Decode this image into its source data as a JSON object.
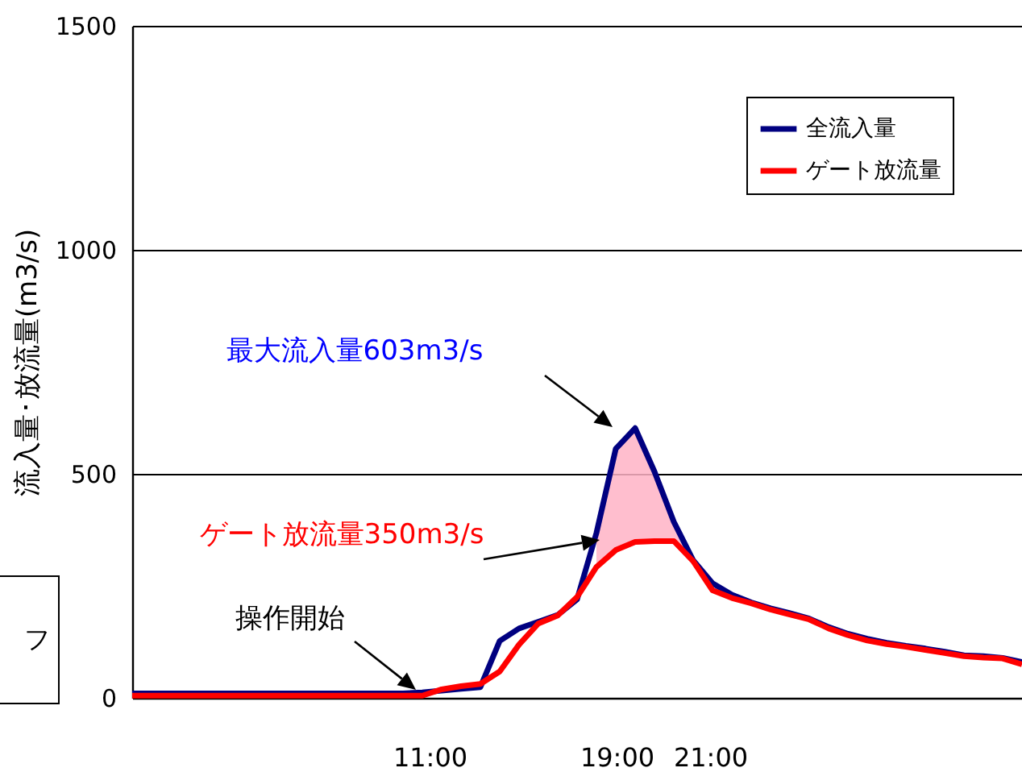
{
  "chart_data": {
    "type": "line",
    "ylabel": "流入量･放流量(m3/s)",
    "categories": [
      null,
      null,
      null,
      null,
      null,
      null,
      null,
      null,
      null,
      null,
      null,
      null,
      null,
      null,
      null,
      null,
      null,
      null,
      null,
      null,
      null,
      null,
      null,
      null,
      null,
      null,
      null,
      null,
      null,
      null,
      null,
      null,
      null,
      null,
      null,
      null,
      null,
      null,
      null,
      null,
      null,
      null,
      null,
      null,
      null,
      null,
      null
    ],
    "ylim": [
      0,
      1500
    ],
    "yticks": [
      0,
      500,
      1000,
      1500
    ],
    "grid": "y",
    "legend": "top right",
    "tick_labels": "y",
    "series": [
      {
        "name": "全流入量",
        "color": "#000080",
        "values": [
          10,
          10,
          10,
          10,
          10,
          10,
          10,
          10,
          10,
          10,
          10,
          10,
          10,
          10,
          10,
          12,
          16,
          20,
          24,
          127,
          155,
          170,
          185,
          220,
          368,
          556,
          602,
          505,
          393,
          307,
          256,
          230,
          213,
          200,
          189,
          177,
          158,
          143,
          132,
          123,
          116,
          110,
          103,
          95,
          93,
          89,
          80
        ]
      },
      {
        "name": "ゲート放流量",
        "color": "#ff0000",
        "values": [
          5,
          5,
          5,
          5,
          5,
          5,
          5,
          5,
          5,
          5,
          5,
          5,
          5,
          5,
          5,
          5,
          19,
          26,
          31,
          59,
          119,
          166,
          184,
          225,
          292,
          330,
          348,
          350,
          350,
          305,
          240,
          223,
          211,
          197,
          186,
          175,
          155,
          140,
          128,
          120,
          114,
          107,
          100,
          93,
          90,
          88,
          75
        ]
      },
      {
        "type": "area",
        "color": "#ffb3c6",
        "values": [
          null,
          null,
          null,
          null,
          null,
          null,
          null,
          null,
          null,
          null,
          null,
          null,
          null,
          null,
          null,
          null,
          null,
          null,
          null,
          null,
          null,
          null,
          null,
          null,
          368,
          556,
          602,
          505,
          393,
          307,
          null,
          null,
          null,
          null,
          null,
          null,
          null,
          null,
          null,
          null,
          null,
          null,
          null,
          null,
          null,
          null,
          null
        ]
      }
    ],
    "annotations": [
      "最大流入量603m3/s",
      "ゲート放流量350m3/s",
      "操作開始",
      "11:00",
      "19:00",
      "21:00",
      "フ"
    ]
  }
}
